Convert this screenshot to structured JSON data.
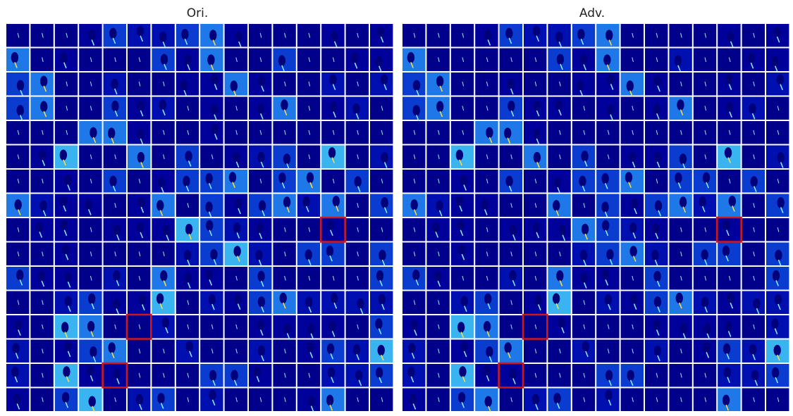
{
  "panels": [
    {
      "title": "Ori."
    },
    {
      "title": "Adv."
    }
  ]
}
